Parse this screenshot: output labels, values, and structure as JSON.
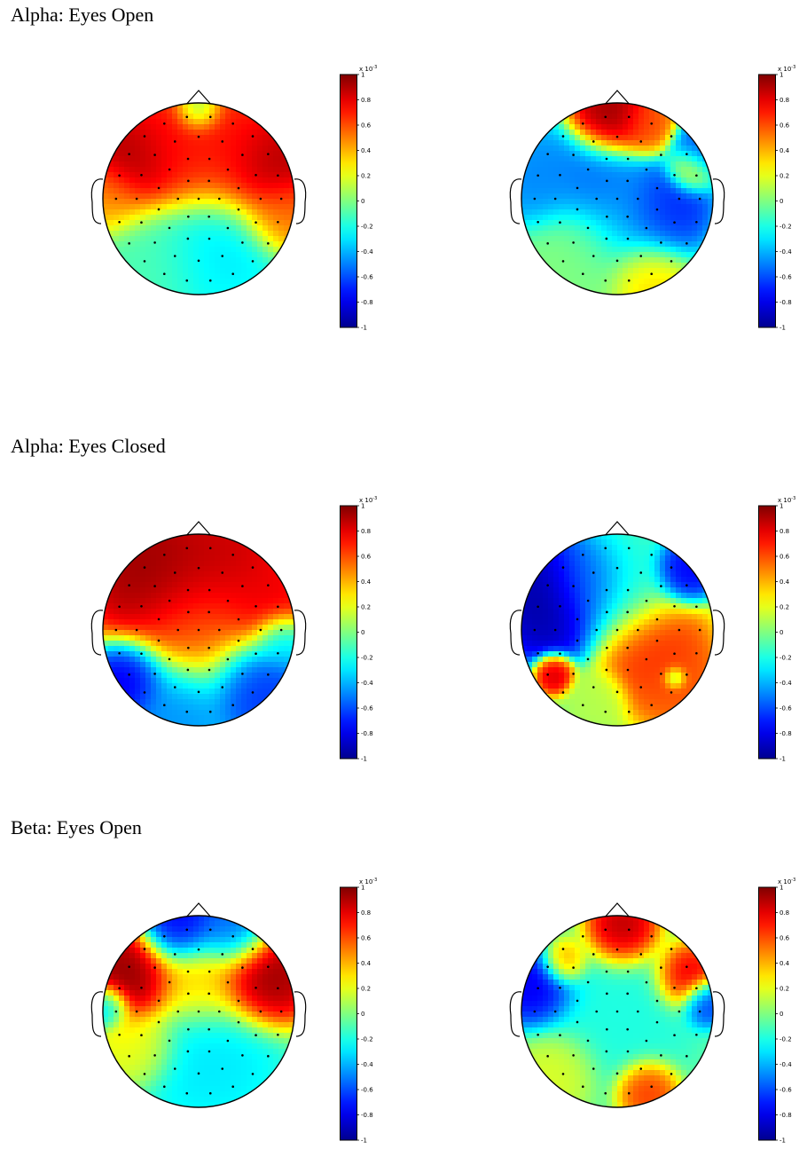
{
  "sections": [
    {
      "title": "Alpha: Eyes Open"
    },
    {
      "title": "Alpha: Eyes Closed"
    },
    {
      "title": "Beta: Eyes Open"
    }
  ],
  "colorbar": {
    "exponent_label": "x 10",
    "exponent_power": "-3",
    "ticks": [
      "1",
      "0.8",
      "0.6",
      "0.4",
      "0.2",
      "0",
      "-0.2",
      "-0.4",
      "-0.6",
      "-0.8",
      "-1"
    ]
  },
  "colors": {
    "jet": [
      "#00008f",
      "#0000ff",
      "#0080ff",
      "#00ffff",
      "#80ff80",
      "#ffff00",
      "#ff8000",
      "#ff0000",
      "#800000"
    ]
  },
  "chart_data": [
    {
      "type": "heatmap",
      "title": "Alpha: Eyes Open",
      "panel": "left",
      "value_range": [
        -1,
        1
      ],
      "blobs": [
        {
          "x": -0.6,
          "y": 0.35,
          "v": 1.0,
          "s": 0.28
        },
        {
          "x": 0.65,
          "y": 0.3,
          "v": 1.0,
          "s": 0.28
        },
        {
          "x": 0.0,
          "y": 0.55,
          "v": 0.75,
          "s": 0.3
        },
        {
          "x": -0.2,
          "y": 0.45,
          "v": 0.7,
          "s": 0.3
        },
        {
          "x": 0.3,
          "y": 0.45,
          "v": 0.7,
          "s": 0.3
        },
        {
          "x": -0.9,
          "y": 0.0,
          "v": 0.45,
          "s": 0.2
        },
        {
          "x": 0.85,
          "y": -0.15,
          "v": 0.55,
          "s": 0.2
        },
        {
          "x": 0.15,
          "y": -0.4,
          "v": -0.3,
          "s": 0.35
        },
        {
          "x": -0.5,
          "y": -0.55,
          "v": -0.1,
          "s": 0.3
        },
        {
          "x": 0.0,
          "y": 0.9,
          "v": -0.3,
          "s": 0.12
        }
      ]
    },
    {
      "type": "heatmap",
      "title": "Alpha: Eyes Open",
      "panel": "right",
      "value_range": [
        -1,
        1
      ],
      "blobs": [
        {
          "x": -0.05,
          "y": 0.8,
          "v": 1.0,
          "s": 0.2
        },
        {
          "x": 0.3,
          "y": 0.75,
          "v": 0.6,
          "s": 0.15
        },
        {
          "x": 0.5,
          "y": -0.1,
          "v": -0.75,
          "s": 0.22
        },
        {
          "x": -0.2,
          "y": 0.2,
          "v": -0.55,
          "s": 0.25
        },
        {
          "x": -0.8,
          "y": 0.2,
          "v": -0.5,
          "s": 0.25
        },
        {
          "x": 0.15,
          "y": -0.2,
          "v": -0.45,
          "s": 0.3
        },
        {
          "x": 0.85,
          "y": 0.5,
          "v": -0.6,
          "s": 0.15
        },
        {
          "x": 0.75,
          "y": 0.3,
          "v": 0.3,
          "s": 0.12
        },
        {
          "x": 0.3,
          "y": -0.8,
          "v": 0.35,
          "s": 0.2
        },
        {
          "x": -0.4,
          "y": -0.6,
          "v": 0.0,
          "s": 0.3
        }
      ]
    },
    {
      "type": "heatmap",
      "title": "Alpha: Eyes Closed",
      "panel": "left",
      "value_range": [
        -1,
        1
      ],
      "blobs": [
        {
          "x": -0.45,
          "y": 0.55,
          "v": 1.0,
          "s": 0.35
        },
        {
          "x": 0.2,
          "y": 0.65,
          "v": 0.9,
          "s": 0.35
        },
        {
          "x": 0.7,
          "y": 0.3,
          "v": 0.8,
          "s": 0.25
        },
        {
          "x": 0.0,
          "y": 0.0,
          "v": 0.55,
          "s": 0.35
        },
        {
          "x": -0.7,
          "y": -0.5,
          "v": -0.85,
          "s": 0.2
        },
        {
          "x": 0.55,
          "y": -0.55,
          "v": -0.7,
          "s": 0.25
        },
        {
          "x": -0.2,
          "y": -0.75,
          "v": -0.5,
          "s": 0.25
        },
        {
          "x": 0.85,
          "y": -0.1,
          "v": -0.4,
          "s": 0.15
        }
      ]
    },
    {
      "type": "heatmap",
      "title": "Alpha: Eyes Closed",
      "panel": "right",
      "value_range": [
        -1,
        1
      ],
      "blobs": [
        {
          "x": -0.65,
          "y": 0.3,
          "v": -1.0,
          "s": 0.3
        },
        {
          "x": -0.3,
          "y": 0.5,
          "v": -0.6,
          "s": 0.2
        },
        {
          "x": 0.7,
          "y": 0.6,
          "v": -0.8,
          "s": 0.15
        },
        {
          "x": 0.35,
          "y": -0.2,
          "v": 0.7,
          "s": 0.28
        },
        {
          "x": 0.6,
          "y": -0.55,
          "v": 0.6,
          "s": 0.22
        },
        {
          "x": -0.65,
          "y": -0.45,
          "v": 0.9,
          "s": 0.1
        },
        {
          "x": 0.6,
          "y": -0.5,
          "v": -0.4,
          "s": 0.06
        },
        {
          "x": -0.2,
          "y": -0.7,
          "v": 0.1,
          "s": 0.15
        },
        {
          "x": 0.0,
          "y": 0.4,
          "v": -0.2,
          "s": 0.3
        }
      ]
    },
    {
      "type": "heatmap",
      "title": "Beta: Eyes Open",
      "panel": "left",
      "value_range": [
        -1,
        1
      ],
      "blobs": [
        {
          "x": -0.7,
          "y": 0.35,
          "v": 1.0,
          "s": 0.25
        },
        {
          "x": 0.65,
          "y": 0.35,
          "v": 1.0,
          "s": 0.25
        },
        {
          "x": 0.0,
          "y": 0.3,
          "v": 0.35,
          "s": 0.25
        },
        {
          "x": -0.2,
          "y": 0.85,
          "v": -0.8,
          "s": 0.2
        },
        {
          "x": 0.35,
          "y": 0.8,
          "v": -0.6,
          "s": 0.2
        },
        {
          "x": 0.1,
          "y": -0.45,
          "v": -0.3,
          "s": 0.35
        },
        {
          "x": -0.6,
          "y": -0.35,
          "v": 0.25,
          "s": 0.2
        },
        {
          "x": -0.95,
          "y": 0.05,
          "v": -0.5,
          "s": 0.12
        }
      ]
    },
    {
      "type": "heatmap",
      "title": "Beta: Eyes Open",
      "panel": "right",
      "value_range": [
        -1,
        1
      ],
      "blobs": [
        {
          "x": 0.05,
          "y": 0.8,
          "v": 1.0,
          "s": 0.18
        },
        {
          "x": 0.7,
          "y": 0.35,
          "v": 0.9,
          "s": 0.16
        },
        {
          "x": -0.8,
          "y": 0.25,
          "v": -0.85,
          "s": 0.2
        },
        {
          "x": 0.9,
          "y": 0.1,
          "v": -0.7,
          "s": 0.12
        },
        {
          "x": -0.55,
          "y": 0.5,
          "v": 0.6,
          "s": 0.12
        },
        {
          "x": 0.3,
          "y": -0.8,
          "v": 0.7,
          "s": 0.15
        },
        {
          "x": 0.0,
          "y": 0.0,
          "v": -0.2,
          "s": 0.4
        },
        {
          "x": -0.6,
          "y": -0.6,
          "v": 0.2,
          "s": 0.2
        }
      ]
    }
  ]
}
